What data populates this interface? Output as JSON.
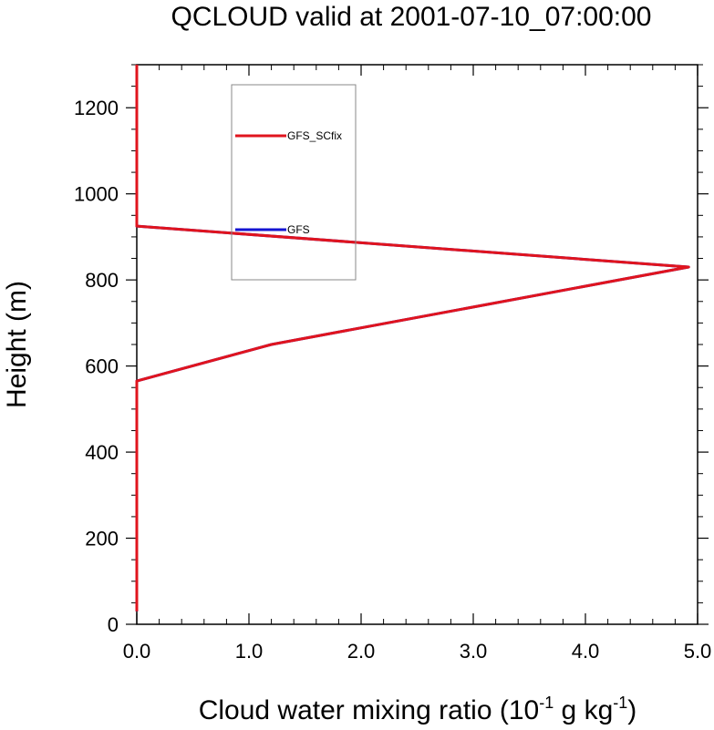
{
  "chart_data": {
    "type": "line",
    "title": "QCLOUD valid at 2001-07-10_07:00:00",
    "xlabel": {
      "prefix": "Cloud water mixing ratio (10",
      "sup1": "-1",
      "middle": " g kg",
      "sup2": "-1",
      "suffix": ")"
    },
    "ylabel": "Height (m)",
    "xlim": [
      0,
      5
    ],
    "ylim": [
      0,
      1300
    ],
    "x_ticks": [
      "0.0",
      "1.0",
      "2.0",
      "3.0",
      "4.0",
      "5.0"
    ],
    "y_ticks": [
      "0",
      "200",
      "400",
      "600",
      "800",
      "1000",
      "1200"
    ],
    "legend_position": "upper-center",
    "series": [
      {
        "name": "GFS",
        "color": "#1414d2",
        "points": [
          [
            0,
            30
          ],
          [
            0,
            565
          ],
          [
            1.2,
            650
          ],
          [
            4.92,
            830
          ],
          [
            0,
            925
          ],
          [
            0,
            1300
          ]
        ]
      },
      {
        "name": "GFS_SCfix",
        "color": "#e0141e",
        "points": [
          [
            0,
            30
          ],
          [
            0,
            565
          ],
          [
            1.2,
            650
          ],
          [
            4.92,
            830
          ],
          [
            0,
            925
          ],
          [
            0,
            1300
          ]
        ]
      }
    ]
  }
}
